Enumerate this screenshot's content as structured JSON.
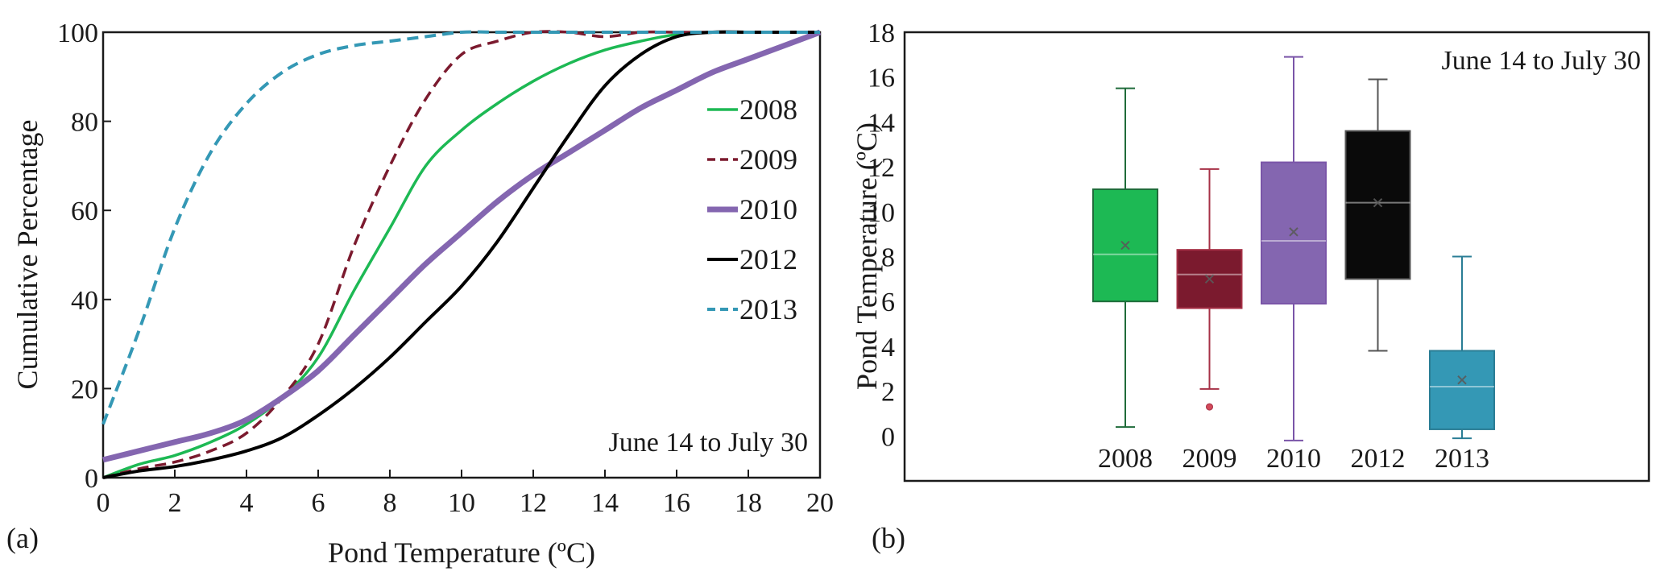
{
  "panel_labels": {
    "a": "(a)",
    "b": "(b)"
  },
  "chart_data": [
    {
      "type": "line",
      "xlabel": "Pond Temperature (ºC)",
      "ylabel": "Cumulative Percentage",
      "annotation": "June 14 to July 30",
      "xlim": [
        0,
        20
      ],
      "ylim": [
        0,
        100
      ],
      "x_ticks": [
        "0",
        "2",
        "4",
        "6",
        "8",
        "10",
        "12",
        "14",
        "16",
        "18",
        "20"
      ],
      "y_ticks": [
        "0",
        "20",
        "40",
        "60",
        "80",
        "100"
      ],
      "legend_position": "right",
      "series": [
        {
          "name": "2008",
          "color": "#1db954",
          "style": "solid",
          "width": "thin",
          "x": [
            0,
            1,
            2,
            3,
            4,
            5,
            6,
            7,
            8,
            9,
            10,
            11,
            12,
            13,
            14,
            15,
            16,
            17,
            18,
            19,
            20
          ],
          "y": [
            0,
            3,
            5,
            8,
            12,
            18,
            27,
            42,
            56,
            70,
            78,
            84,
            89,
            93,
            96,
            98,
            99.5,
            100,
            100,
            100,
            100
          ]
        },
        {
          "name": "2009",
          "color": "#7b1a2e",
          "style": "dashed",
          "width": "thin",
          "x": [
            0,
            1,
            2,
            3,
            4,
            5,
            6,
            7,
            8,
            9,
            10,
            11,
            12,
            13,
            14,
            15,
            16,
            17,
            18,
            19,
            20
          ],
          "y": [
            0,
            2,
            3.5,
            6,
            10,
            18,
            30,
            52,
            70,
            85,
            95,
            98,
            100,
            100,
            99,
            100,
            100,
            100,
            100,
            100,
            100
          ]
        },
        {
          "name": "2010",
          "color": "#8466b0",
          "style": "solid",
          "width": "thick",
          "x": [
            0,
            1,
            2,
            3,
            4,
            5,
            6,
            7,
            8,
            9,
            10,
            11,
            12,
            13,
            14,
            15,
            16,
            17,
            18,
            19,
            20
          ],
          "y": [
            4,
            6,
            8,
            10,
            13,
            18,
            24,
            32,
            40,
            48,
            55,
            62,
            68,
            73,
            78,
            83,
            87,
            91,
            94,
            97,
            100
          ]
        },
        {
          "name": "2012",
          "color": "#000000",
          "style": "solid",
          "width": "medium",
          "x": [
            0,
            1,
            2,
            3,
            4,
            5,
            6,
            7,
            8,
            9,
            10,
            11,
            12,
            13,
            14,
            15,
            16,
            17,
            18,
            19,
            20
          ],
          "y": [
            0,
            1.5,
            2.5,
            4,
            6,
            9,
            14,
            20,
            27,
            35,
            43,
            53,
            65,
            77,
            88,
            95,
            99,
            100,
            100,
            100,
            100
          ]
        },
        {
          "name": "2013",
          "color": "#3498b5",
          "style": "dashed",
          "width": "medium",
          "x": [
            0,
            1,
            2,
            3,
            4,
            5,
            6,
            7,
            8,
            9,
            10,
            11,
            12,
            13,
            14,
            15,
            16,
            17,
            18,
            19,
            20
          ],
          "y": [
            12,
            33,
            56,
            73,
            84,
            91,
            95,
            97,
            98,
            99,
            100,
            100,
            100,
            100,
            100,
            100,
            100,
            100,
            100,
            100,
            100
          ]
        }
      ]
    },
    {
      "type": "box",
      "ylabel": "Pond Temperature (ºC)",
      "annotation": "June 14 to July 30",
      "ylim": [
        -2,
        18
      ],
      "y_ticks": [
        "0",
        "2",
        "4",
        "6",
        "8",
        "10",
        "12",
        "14",
        "16",
        "18"
      ],
      "categories": [
        "2008",
        "2009",
        "2010",
        "2012",
        "2013"
      ],
      "boxes": [
        {
          "name": "2008",
          "fill": "#1db954",
          "edge": "#1f6b3a",
          "min": 0.4,
          "q1": 6.0,
          "median": 8.1,
          "q3": 11.0,
          "max": 15.5,
          "mean": 8.5,
          "outliers": []
        },
        {
          "name": "2009",
          "fill": "#7b1a2e",
          "edge": "#a63046",
          "min": 2.1,
          "q1": 5.7,
          "median": 7.2,
          "q3": 8.3,
          "max": 11.9,
          "mean": 7.0,
          "outliers": [
            1.3
          ]
        },
        {
          "name": "2010",
          "fill": "#8466b0",
          "edge": "#7a55a8",
          "min": -0.2,
          "q1": 5.9,
          "median": 8.7,
          "q3": 12.2,
          "max": 16.9,
          "mean": 9.1,
          "outliers": []
        },
        {
          "name": "2012",
          "fill": "#0a0a0a",
          "edge": "#555555",
          "min": 3.8,
          "q1": 7.0,
          "median": 10.4,
          "q3": 13.6,
          "max": 15.9,
          "mean": 10.4,
          "outliers": []
        },
        {
          "name": "2013",
          "fill": "#3498b5",
          "edge": "#2a7d95",
          "min": -0.1,
          "q1": 0.3,
          "median": 2.2,
          "q3": 3.8,
          "max": 8.0,
          "mean": 2.5,
          "outliers": []
        }
      ]
    }
  ]
}
